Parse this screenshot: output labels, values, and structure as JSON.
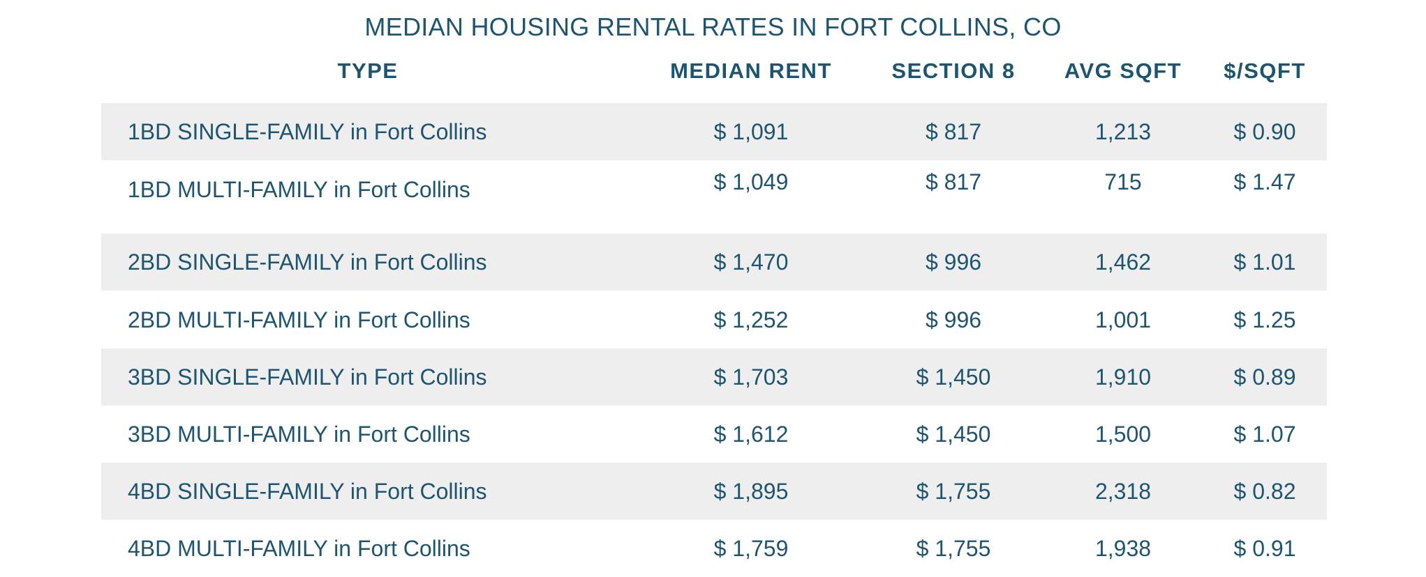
{
  "chart_data": {
    "type": "table",
    "title": "MEDIAN HOUSING RENTAL RATES IN FORT COLLINS, CO",
    "columns": [
      "TYPE",
      "MEDIAN RENT",
      "SECTION 8",
      "AVG SQFT",
      "$/SQFT"
    ],
    "rows": [
      [
        "1BD SINGLE-FAMILY in Fort Collins",
        "$ 1,091",
        "$ 817",
        "1,213",
        "$ 0.90"
      ],
      [
        "1BD MULTI-FAMILY in Fort Collins",
        "$ 1,049",
        "$ 817",
        "715",
        "$ 1.47"
      ],
      [
        "2BD SINGLE-FAMILY in Fort Collins",
        "$ 1,470",
        "$ 996",
        "1,462",
        "$ 1.01"
      ],
      [
        "2BD MULTI-FAMILY in Fort Collins",
        "$ 1,252",
        "$ 996",
        "1,001",
        "$ 1.25"
      ],
      [
        "3BD SINGLE-FAMILY in Fort Collins",
        "$ 1,703",
        "$ 1,450",
        "1,910",
        "$ 0.89"
      ],
      [
        "3BD MULTI-FAMILY in Fort Collins",
        "$ 1,612",
        "$ 1,450",
        "1,500",
        "$ 1.07"
      ],
      [
        "4BD SINGLE-FAMILY in Fort Collins",
        "$ 1,895",
        "$ 1,755",
        "2,318",
        "$ 0.82"
      ],
      [
        "4BD MULTI-FAMILY in Fort Collins",
        "$ 1,759",
        "$ 1,755",
        "1,938",
        "$ 0.91"
      ]
    ],
    "median_rent": [
      1091,
      1049,
      1470,
      1252,
      1703,
      1612,
      1895,
      1759
    ],
    "section_8": [
      817,
      817,
      996,
      996,
      1450,
      1450,
      1755,
      1755
    ],
    "avg_sqft": [
      1213,
      715,
      1462,
      1001,
      1910,
      1500,
      2318,
      1938
    ],
    "price_per_sqft": [
      0.9,
      1.47,
      1.01,
      1.25,
      0.89,
      1.07,
      0.82,
      0.91
    ]
  },
  "colors": {
    "text": "#1d5470",
    "row_shade": "#eeeeee",
    "background": "#ffffff"
  }
}
